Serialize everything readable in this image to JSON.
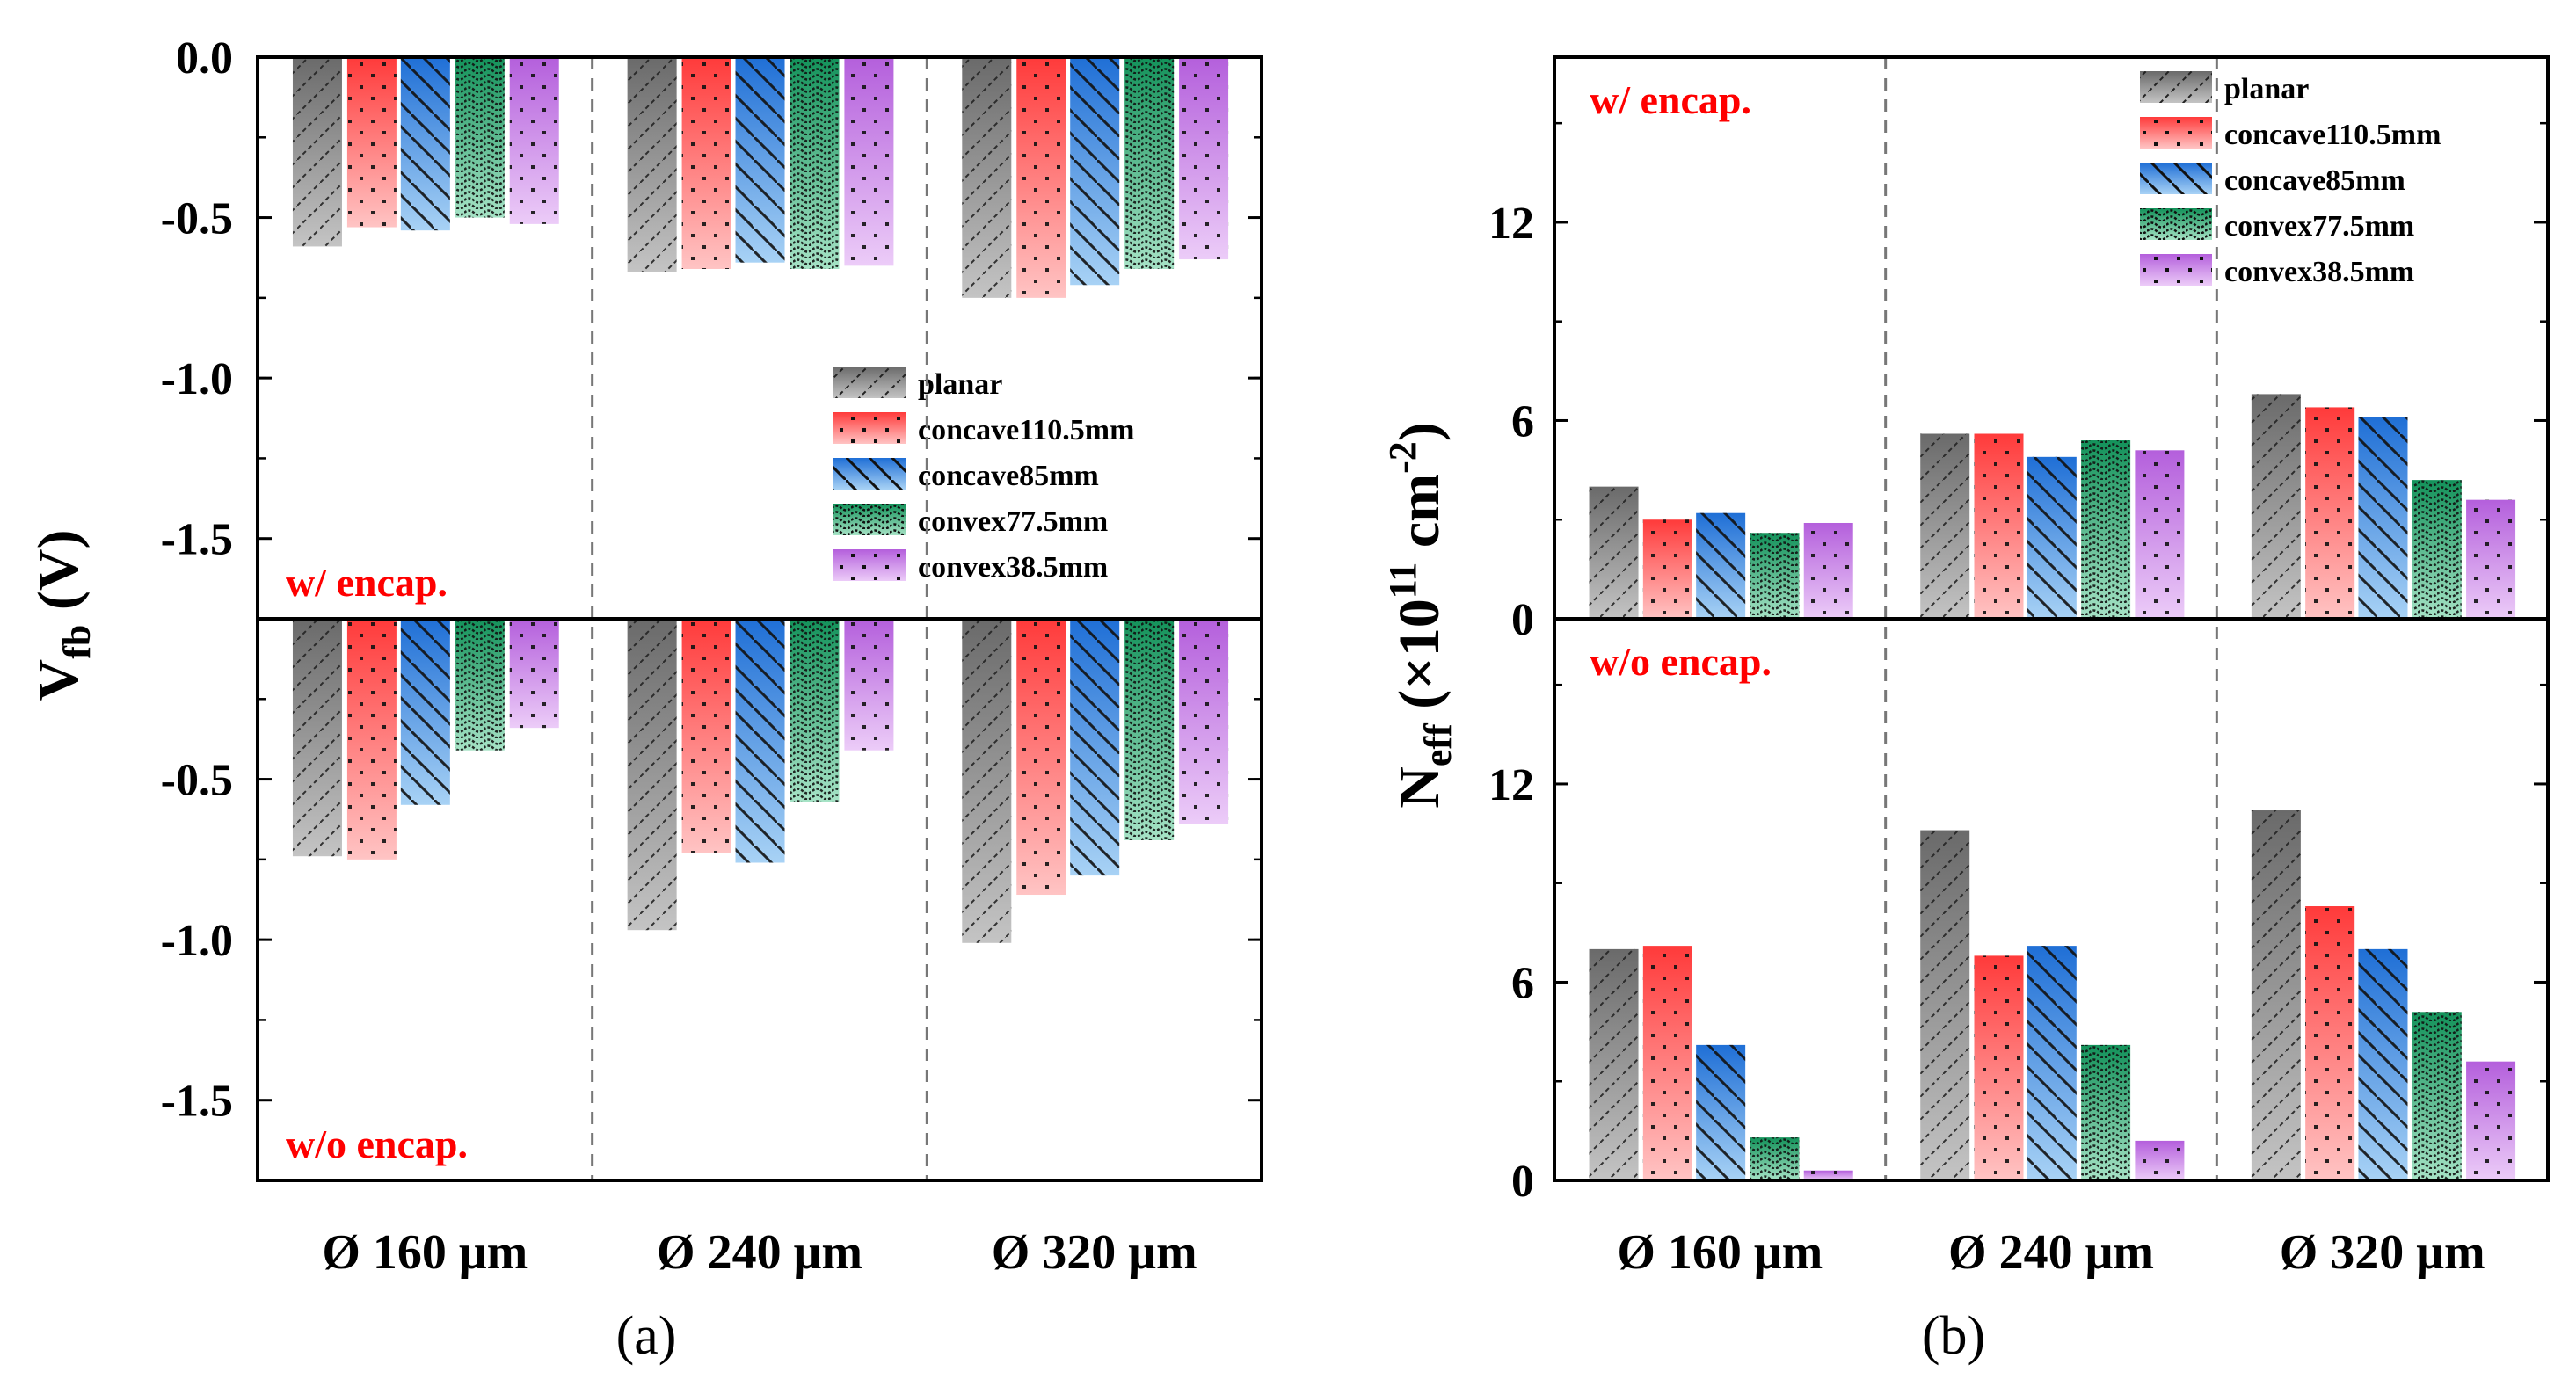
{
  "panels": [
    "(a)",
    "(b)"
  ],
  "groups": [
    "Ø 160 μm",
    "Ø 240 μm",
    "Ø 320 μm"
  ],
  "series": [
    {
      "name": "planar",
      "color_top": "#6a6a6a",
      "color_bottom": "#c4c4c4",
      "pattern": "dash"
    },
    {
      "name": "concave110.5mm",
      "color_top": "#ff3a3a",
      "color_bottom": "#ffc4c4",
      "pattern": "dots"
    },
    {
      "name": "concave85mm",
      "color_top": "#1f6fd6",
      "color_bottom": "#a8d2f5",
      "pattern": "diag"
    },
    {
      "name": "convex77.5mm",
      "color_top": "#13925a",
      "color_bottom": "#a6e3c6",
      "pattern": "wave"
    },
    {
      "name": "convex38.5mm",
      "color_top": "#b45fdc",
      "color_bottom": "#ecccf8",
      "pattern": "dots"
    }
  ],
  "labels": {
    "with": "w/ encap.",
    "without": "w/o encap."
  },
  "chart_data": [
    {
      "type": "bar",
      "panel": "(a)",
      "ylabel": "V_fb (V)",
      "ylabel_main": "V",
      "ylabel_sub": "fb",
      "ylabel_unit": " (V)",
      "xlabel": "",
      "categories": [
        "Ø 160 μm",
        "Ø 240 μm",
        "Ø 320 μm"
      ],
      "subplots": [
        {
          "label": "w/ encap.",
          "ylim": [
            -1.75,
            0
          ],
          "yticks": [
            0.0,
            -0.5,
            -1.0,
            -1.5
          ],
          "ytick_labels": [
            "0.0",
            "-0.5",
            "-1.0",
            "-1.5"
          ],
          "legend": "middle-right",
          "series": [
            {
              "name": "planar",
              "values": [
                -0.59,
                -0.67,
                -0.75
              ]
            },
            {
              "name": "concave110.5mm",
              "values": [
                -0.53,
                -0.66,
                -0.75
              ]
            },
            {
              "name": "concave85mm",
              "values": [
                -0.54,
                -0.64,
                -0.71
              ]
            },
            {
              "name": "convex77.5mm",
              "values": [
                -0.5,
                -0.66,
                -0.66
              ]
            },
            {
              "name": "convex38.5mm",
              "values": [
                -0.52,
                -0.65,
                -0.63
              ]
            }
          ]
        },
        {
          "label": "w/o encap.",
          "ylim": [
            -1.75,
            0
          ],
          "yticks": [
            -0.5,
            -1.0,
            -1.5
          ],
          "ytick_labels": [
            "-0.5",
            "-1.0",
            "-1.5"
          ],
          "series": [
            {
              "name": "planar",
              "values": [
                -0.74,
                -0.97,
                -1.01
              ]
            },
            {
              "name": "concave110.5mm",
              "values": [
                -0.75,
                -0.73,
                -0.86
              ]
            },
            {
              "name": "concave85mm",
              "values": [
                -0.58,
                -0.76,
                -0.8
              ]
            },
            {
              "name": "convex77.5mm",
              "values": [
                -0.41,
                -0.57,
                -0.69
              ]
            },
            {
              "name": "convex38.5mm",
              "values": [
                -0.34,
                -0.41,
                -0.64
              ]
            }
          ]
        }
      ]
    },
    {
      "type": "bar",
      "panel": "(b)",
      "ylabel": "N_eff (×10^11 cm^-2)",
      "ylabel_main": "N",
      "ylabel_sub": "eff",
      "ylabel_mid": " (×10",
      "ylabel_sup1": "11",
      "ylabel_cm": " cm",
      "ylabel_sup2": "-2",
      "ylabel_end": ")",
      "xlabel": "",
      "categories": [
        "Ø 160 μm",
        "Ø 240 μm",
        "Ø 320 μm"
      ],
      "subplots": [
        {
          "label": "w/ encap.",
          "ylim": [
            0,
            17
          ],
          "yticks": [
            0,
            6,
            12
          ],
          "ytick_labels": [
            "0",
            "6",
            "12"
          ],
          "legend": "top-right",
          "series": [
            {
              "name": "planar",
              "values": [
                4.0,
                5.6,
                6.8
              ]
            },
            {
              "name": "concave110.5mm",
              "values": [
                3.0,
                5.6,
                6.4
              ]
            },
            {
              "name": "concave85mm",
              "values": [
                3.2,
                4.9,
                6.1
              ]
            },
            {
              "name": "convex77.5mm",
              "values": [
                2.6,
                5.4,
                4.2
              ]
            },
            {
              "name": "convex38.5mm",
              "values": [
                2.9,
                5.1,
                3.6
              ]
            }
          ]
        },
        {
          "label": "w/o encap.",
          "ylim": [
            0,
            17
          ],
          "yticks": [
            0,
            6,
            12
          ],
          "ytick_labels": [
            "0",
            "6",
            "12"
          ],
          "series": [
            {
              "name": "planar",
              "values": [
                7.0,
                10.6,
                11.2
              ]
            },
            {
              "name": "concave110.5mm",
              "values": [
                7.1,
                6.8,
                8.3
              ]
            },
            {
              "name": "concave85mm",
              "values": [
                4.1,
                7.1,
                7.0
              ]
            },
            {
              "name": "convex77.5mm",
              "values": [
                1.3,
                4.1,
                5.1
              ]
            },
            {
              "name": "convex38.5mm",
              "values": [
                0.3,
                1.2,
                3.6
              ]
            }
          ]
        }
      ]
    }
  ]
}
